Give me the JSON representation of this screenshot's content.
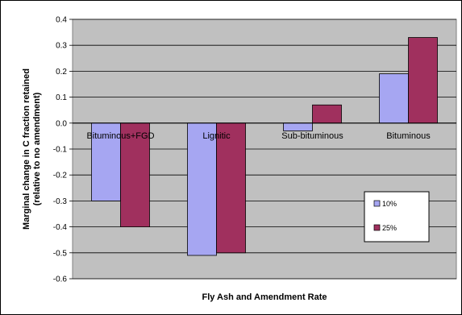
{
  "chart_data": {
    "type": "bar",
    "categories": [
      "Bituminous+FGD",
      "Lignitic",
      "Sub-bituminous",
      "Bituminous"
    ],
    "series": [
      {
        "name": "10%",
        "values": [
          -0.3,
          -0.51,
          -0.03,
          0.19
        ],
        "color": "#a6a6f2"
      },
      {
        "name": "25%",
        "values": [
          -0.4,
          -0.5,
          0.07,
          0.33
        ],
        "color": "#a0305e"
      }
    ],
    "title": "",
    "xlabel": "Fly Ash and Amendment Rate",
    "ylabel_lines": [
      "Marginal change in C fraction retained",
      "(relative to no amendment)"
    ],
    "ylim": [
      -0.6,
      0.4
    ],
    "yticks": [
      "0.4",
      "0.3",
      "0.2",
      "0.1",
      "0.0",
      "-0.1",
      "-0.2",
      "-0.3",
      "-0.4",
      "-0.5",
      "-0.6"
    ],
    "grid": true,
    "legend_position": "right",
    "plot_background": "#c0c0c0"
  }
}
